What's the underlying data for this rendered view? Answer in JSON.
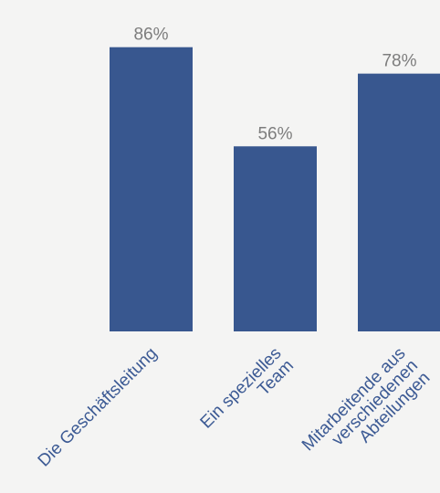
{
  "chart_data": {
    "type": "bar",
    "categories": [
      [
        "Die Geschäftsleitung"
      ],
      [
        "Ein spezielles",
        "Team"
      ],
      [
        "Mitarbeitende aus",
        "verschiedenen",
        "Abteilungen"
      ]
    ],
    "values": [
      86,
      56,
      78
    ],
    "value_labels": [
      "86%",
      "56%",
      "78%"
    ],
    "unit": "%",
    "ylim": [
      0,
      100
    ],
    "title": "",
    "xlabel": "",
    "ylabel": "",
    "grid": false,
    "legend": "none",
    "colors": {
      "bar": "#38578f",
      "value_label": "#7d7d7d",
      "tick_label": "#3c5a94",
      "background": "#f4f4f3"
    }
  }
}
